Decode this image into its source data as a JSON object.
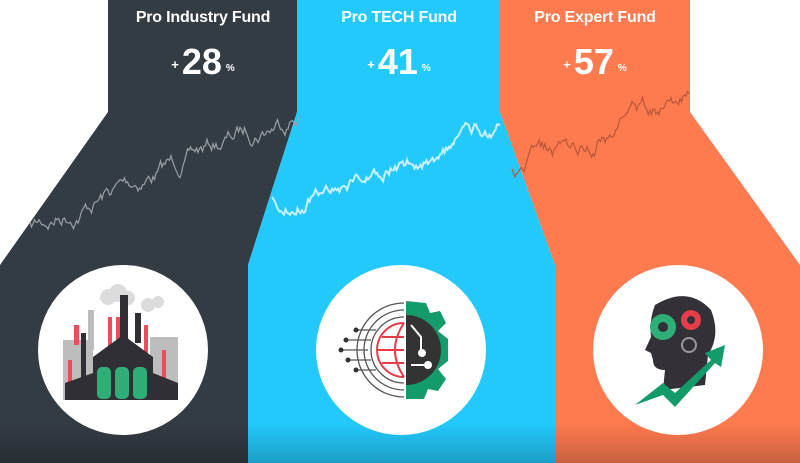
{
  "funds": [
    {
      "title": "Pro Industry Fund",
      "sign": "+",
      "value": "28",
      "unit": "%",
      "color": "#333b43",
      "icon": "factory-icon"
    },
    {
      "title": "Pro TECH Fund",
      "sign": "+",
      "value": "41",
      "unit": "%",
      "color": "#23c9fb",
      "icon": "tech-globe-gear-icon"
    },
    {
      "title": "Pro Expert Fund",
      "sign": "+",
      "value": "57",
      "unit": "%",
      "color": "#fe7a4f",
      "icon": "head-gears-growth-icon"
    }
  ]
}
